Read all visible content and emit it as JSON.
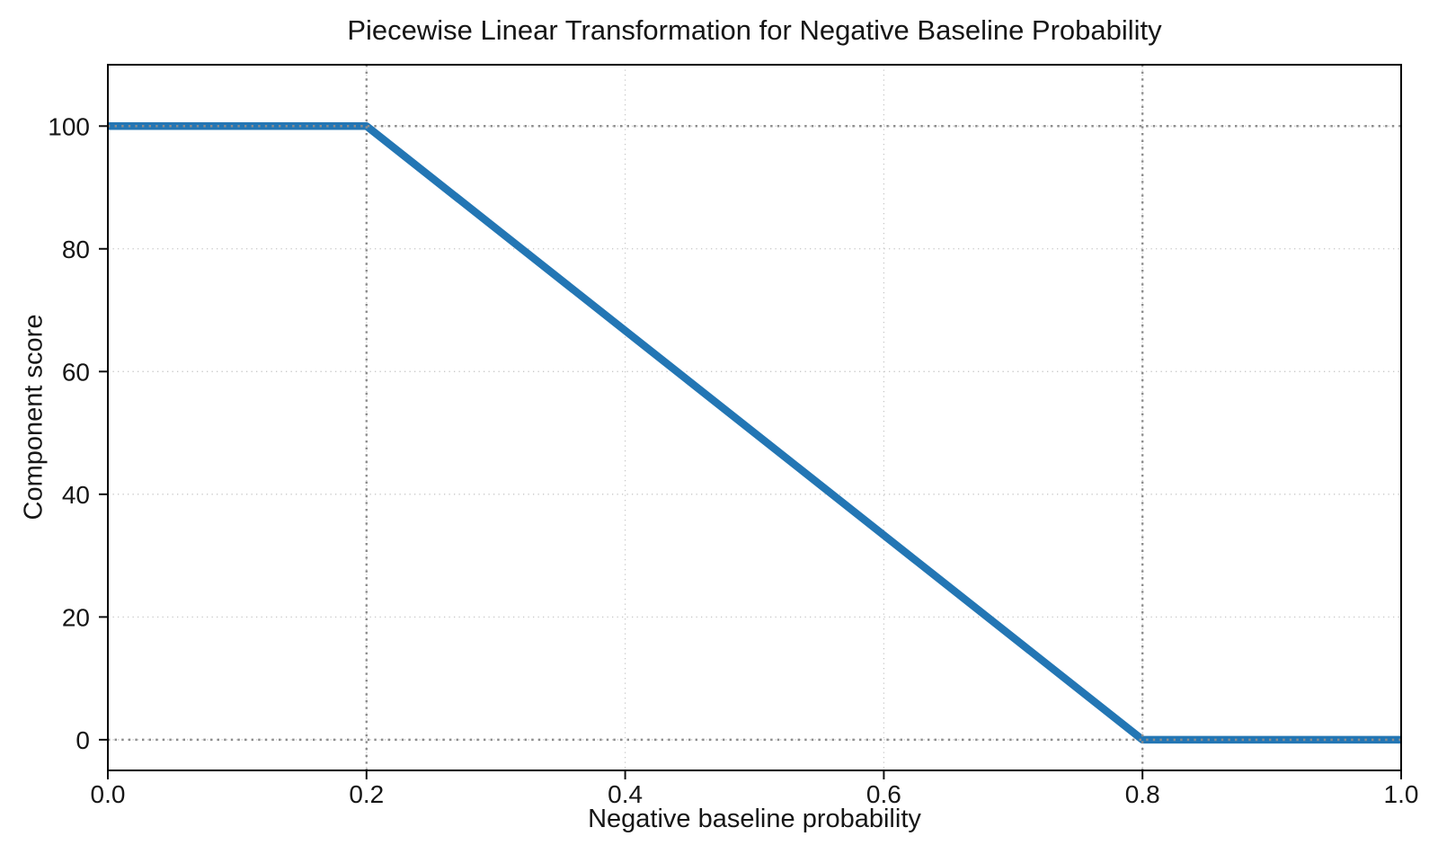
{
  "figure": {
    "background": "#ffffff"
  },
  "chart_data": {
    "type": "line",
    "title": "Piecewise Linear Transformation for Negative Baseline Probability",
    "xlabel": "Negative baseline probability",
    "ylabel": "Component score",
    "series": [
      {
        "name": "component-score-line",
        "x": [
          0.0,
          0.2,
          0.8,
          1.0
        ],
        "y": [
          100,
          100,
          0,
          0
        ],
        "color": "#2376b4",
        "width": 8.5
      }
    ],
    "xlim": [
      0.0,
      1.0
    ],
    "ylim": [
      -5,
      110
    ],
    "xticks": {
      "values": [
        0.0,
        0.2,
        0.4,
        0.6,
        0.8,
        1.0
      ],
      "labels": [
        "0.0",
        "0.2",
        "0.4",
        "0.6",
        "0.8",
        "1.0"
      ]
    },
    "yticks": {
      "values": [
        0,
        20,
        40,
        60,
        80,
        100
      ],
      "labels": [
        "0",
        "20",
        "40",
        "60",
        "80",
        "100"
      ]
    },
    "grid": {
      "visible": true,
      "style": "dotted",
      "color": "#c8c8c8"
    },
    "reference_lines": {
      "vertical": [
        0.2,
        0.8
      ],
      "horizontal": [
        0,
        100
      ],
      "style": "dotted",
      "color": "#8d8d8d"
    },
    "legend": {
      "visible": false
    }
  }
}
